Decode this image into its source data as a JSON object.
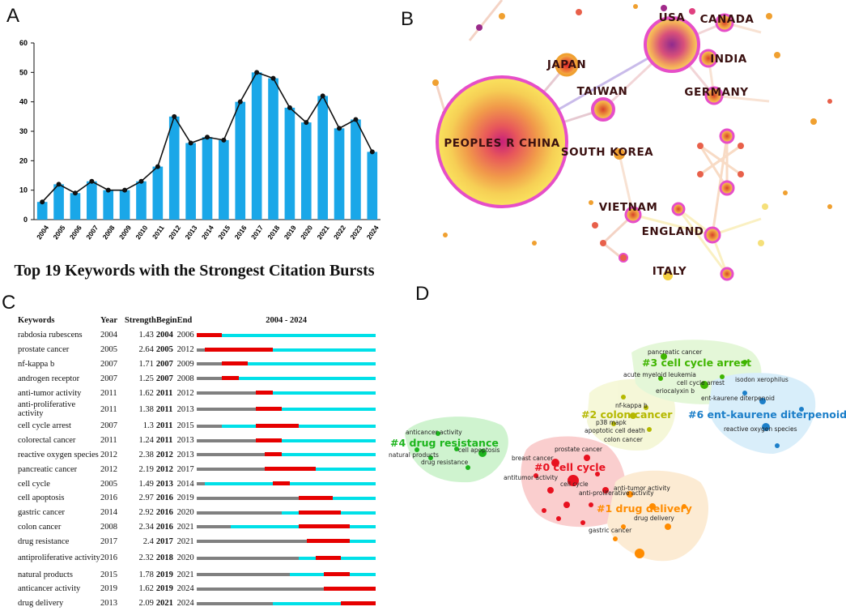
{
  "labels": {
    "a": "A",
    "b": "B",
    "c": "C",
    "d": "D"
  },
  "chart_data": [
    {
      "panel": "A",
      "type": "bar",
      "categories": [
        "2004",
        "2005",
        "2006",
        "2007",
        "2008",
        "2009",
        "2010",
        "2011",
        "2012",
        "2013",
        "2014",
        "2015",
        "2016",
        "2017",
        "2018",
        "2019",
        "2020",
        "2021",
        "2022",
        "2023",
        "2024"
      ],
      "values": [
        6,
        12,
        9,
        13,
        10,
        10,
        13,
        18,
        35,
        26,
        28,
        27,
        40,
        50,
        48,
        38,
        33,
        42,
        31,
        34,
        23
      ],
      "line_overlay": true,
      "title": "",
      "xlabel": "",
      "ylabel": "",
      "ylim": [
        0,
        60
      ],
      "yticks": [
        0,
        10,
        20,
        30,
        40,
        50,
        60
      ],
      "colors": {
        "bar": "#1aa7e8",
        "line": "#111111"
      }
    },
    {
      "panel": "B",
      "type": "network",
      "nodes": [
        {
          "name": "PEOPLES R CHINA",
          "size": "largest"
        },
        {
          "name": "USA",
          "size": "large"
        },
        {
          "name": "CANADA",
          "size": "small"
        },
        {
          "name": "INDIA",
          "size": "small"
        },
        {
          "name": "JAPAN",
          "size": "small"
        },
        {
          "name": "TAIWAN",
          "size": "small"
        },
        {
          "name": "GERMANY",
          "size": "small"
        },
        {
          "name": "SOUTH KOREA",
          "size": "small"
        },
        {
          "name": "VIETNAM",
          "size": "small"
        },
        {
          "name": "ENGLAND",
          "size": "small"
        },
        {
          "name": "ITALY",
          "size": "small"
        }
      ]
    },
    {
      "panel": "C",
      "type": "table",
      "title": "Top 19 Keywords with the Strongest Citation Bursts",
      "columns": [
        "Keywords",
        "Year",
        "Strength",
        "Begin",
        "End",
        "2004 - 2024"
      ],
      "range": [
        2004,
        2024
      ],
      "rows": [
        {
          "keyword": "rabdosia rubescens",
          "year": 2004,
          "strength": "1.43",
          "begin": 2004,
          "end": 2006
        },
        {
          "keyword": "prostate cancer",
          "year": 2005,
          "strength": "2.64",
          "begin": 2005,
          "end": 2012
        },
        {
          "keyword": "nf-kappa b",
          "year": 2007,
          "strength": "1.71",
          "begin": 2007,
          "end": 2009
        },
        {
          "keyword": "androgen receptor",
          "year": 2007,
          "strength": "1.25",
          "begin": 2007,
          "end": 2008
        },
        {
          "keyword": "anti-tumor activity",
          "year": 2011,
          "strength": "1.62",
          "begin": 2011,
          "end": 2012
        },
        {
          "keyword": "anti-proliferative activity",
          "year": 2011,
          "strength": "1.38",
          "begin": 2011,
          "end": 2013
        },
        {
          "keyword": "cell cycle arrest",
          "year": 2007,
          "strength": "1.3",
          "begin": 2011,
          "end": 2015
        },
        {
          "keyword": "colorectal cancer",
          "year": 2011,
          "strength": "1.24",
          "begin": 2011,
          "end": 2013
        },
        {
          "keyword": "reactive oxygen species",
          "year": 2012,
          "strength": "2.38",
          "begin": 2012,
          "end": 2013
        },
        {
          "keyword": "pancreatic cancer",
          "year": 2012,
          "strength": "2.19",
          "begin": 2012,
          "end": 2017
        },
        {
          "keyword": "cell cycle",
          "year": 2005,
          "strength": "1.49",
          "begin": 2013,
          "end": 2014
        },
        {
          "keyword": "cell apoptosis",
          "year": 2016,
          "strength": "2.97",
          "begin": 2016,
          "end": 2019
        },
        {
          "keyword": "gastric cancer",
          "year": 2014,
          "strength": "2.92",
          "begin": 2016,
          "end": 2020
        },
        {
          "keyword": "colon cancer",
          "year": 2008,
          "strength": "2.34",
          "begin": 2016,
          "end": 2021
        },
        {
          "keyword": "drug resistance",
          "year": 2017,
          "strength": "2.4",
          "begin": 2017,
          "end": 2021
        },
        {
          "keyword": "antiproliferative activity",
          "year": 2016,
          "strength": "2.32",
          "begin": 2018,
          "end": 2020
        },
        {
          "keyword": "natural products",
          "year": 2015,
          "strength": "1.78",
          "begin": 2019,
          "end": 2021
        },
        {
          "keyword": "anticancer activity",
          "year": 2019,
          "strength": "1.62",
          "begin": 2019,
          "end": 2024
        },
        {
          "keyword": "drug delivery",
          "year": 2013,
          "strength": "2.09",
          "begin": 2021,
          "end": 2024
        }
      ],
      "colors": {
        "before": "#808080",
        "active": "#00e0e8",
        "burst": "#e60000"
      }
    },
    {
      "panel": "D",
      "type": "cluster",
      "clusters": [
        {
          "label": "#0 cell cycle",
          "color": "#e8111f",
          "terms": [
            "prostate cancer",
            "breast cancer",
            "antitumor activity",
            "cell cycle",
            "anti-proliferative activity"
          ]
        },
        {
          "label": "#1 drug delivery",
          "color": "#ff8c00",
          "terms": [
            "anti-tumor activity",
            "drug delivery",
            "gastric cancer"
          ]
        },
        {
          "label": "#2 colon cancer",
          "color": "#b5b800",
          "terms": [
            "nf-kappa b",
            "p38 mapk",
            "apoptotic cell death",
            "colon cancer"
          ]
        },
        {
          "label": "#3 cell cycle arrest",
          "color": "#3fb500",
          "terms": [
            "pancreatic cancer",
            "acute myeloid leukemia",
            "cell cycle arrest",
            "eriocalyxin b"
          ]
        },
        {
          "label": "#4 drug resistance",
          "color": "#1db51d",
          "terms": [
            "anticancer activity",
            "natural products",
            "cell apoptosis",
            "drug resistance"
          ]
        },
        {
          "label": "#6 ent-kaurene diterpenoid",
          "color": "#1c7fc9",
          "terms": [
            "isodon xerophilus",
            "ent-kaurene diterpenoid",
            "reactive oxygen species"
          ]
        }
      ]
    }
  ]
}
